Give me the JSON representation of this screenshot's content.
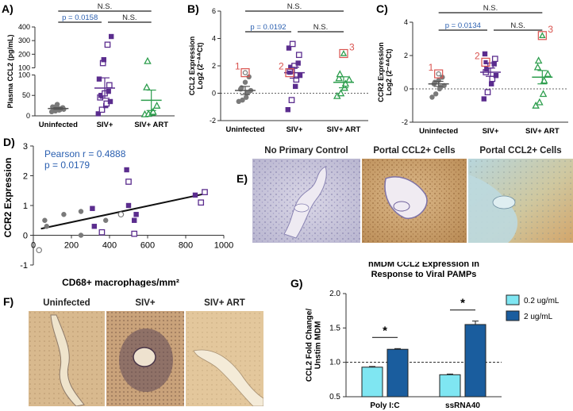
{
  "figure": {
    "panel_letters": {
      "A": "A)",
      "B": "B)",
      "C": "C)",
      "D": "D)",
      "E": "E)",
      "F": "F)",
      "G": "G)"
    },
    "colors": {
      "uninfected": "#7a7a7a",
      "siv": "#5b2d8e",
      "art": "#2e9e4e",
      "pvalue": "#2a5fb0",
      "outlier": "#d9534f",
      "g_low": "#7fe6f2",
      "g_high": "#1a5d9e"
    }
  },
  "chart_data": [
    {
      "id": "A",
      "type": "scatter",
      "ylabel": "Plasma CCL2 (pg/mL)",
      "categories": [
        "Uninfected",
        "SIV+",
        "SIV+ ART"
      ],
      "axis_break": true,
      "ylim_upper": [
        100,
        400
      ],
      "yticks_upper": [
        "400",
        "300",
        "200",
        "100"
      ],
      "ylim_lower": [
        0,
        100
      ],
      "yticks_lower": [
        "100",
        "50",
        "0"
      ],
      "groups": [
        {
          "name": "Uninfected",
          "marker": "filled-circle",
          "values": [
            10,
            12,
            14,
            15,
            16,
            17,
            18,
            18,
            19,
            20,
            22,
            24,
            28
          ],
          "mean": 18,
          "sem": 2
        },
        {
          "name": "SIV+",
          "marker": "mixed-square",
          "values": [
            5,
            15,
            25,
            30,
            35,
            45,
            50,
            55,
            60,
            75,
            90,
            135,
            160,
            270,
            330
          ],
          "mean": 68,
          "sem": 25
        },
        {
          "name": "SIV+ ART",
          "marker": "open-triangle",
          "values": [
            4,
            5,
            8,
            10,
            25,
            70,
            150
          ],
          "mean": 38,
          "sem": 25
        }
      ],
      "brackets": [
        {
          "from": "Uninfected",
          "to": "SIV+",
          "text": "p = 0.0158",
          "level": 2
        },
        {
          "from": "SIV+",
          "to": "SIV+ ART",
          "text": "N.S.",
          "level": 2
        },
        {
          "from": "Uninfected",
          "to": "SIV+ ART",
          "text": "N.S.",
          "level": 1
        }
      ]
    },
    {
      "id": "B",
      "type": "scatter",
      "ylabel": "CCL2 Expression\nLog2 (2⁻ᐞᐞCt)",
      "categories": [
        "Uninfected",
        "SIV+",
        "SIV+ ART"
      ],
      "ylim": [
        -2,
        6
      ],
      "yticks": [
        "-2",
        "0",
        "2",
        "4",
        "6"
      ],
      "groups": [
        {
          "name": "Uninfected",
          "values": [
            -0.6,
            -0.5,
            -0.3,
            0.0,
            0.2,
            0.3,
            0.4,
            0.8,
            1.2
          ],
          "mean": 0.2,
          "sem": 0.3,
          "outlier": {
            "value": 1.5,
            "label": "1"
          }
        },
        {
          "name": "SIV+",
          "values": [
            -1.2,
            -0.5,
            0.5,
            1.0,
            1.3,
            1.6,
            1.9,
            2.0,
            2.2,
            2.8,
            3.3,
            3.6
          ],
          "mean": 1.5,
          "sem": 0.4,
          "outlier": {
            "value": 1.5,
            "label": "2"
          }
        },
        {
          "name": "SIV+ ART",
          "values": [
            -0.2,
            0.0,
            0.4,
            0.7,
            1.0,
            1.1,
            1.4
          ],
          "mean": 0.8,
          "sem": 0.4,
          "outlier": {
            "value": 2.9,
            "label": "3"
          }
        }
      ],
      "brackets": [
        {
          "from": "Uninfected",
          "to": "SIV+",
          "text": "p = 0.0192",
          "level": 2
        },
        {
          "from": "SIV+",
          "to": "SIV+ ART",
          "text": "N.S.",
          "level": 2
        },
        {
          "from": "Uninfected",
          "to": "SIV+ ART",
          "text": "N.S.",
          "level": 1
        }
      ]
    },
    {
      "id": "C",
      "type": "scatter",
      "ylabel": "CCR2 Expression\nLog2 (2⁻ᐞᐞCt)",
      "categories": [
        "Uninfected",
        "SIV+",
        "SIV+ ART"
      ],
      "ylim": [
        -2,
        4
      ],
      "yticks": [
        "-2",
        "0",
        "2",
        "4"
      ],
      "groups": [
        {
          "name": "Uninfected",
          "values": [
            -0.5,
            -0.3,
            0.0,
            0.1,
            0.2,
            0.3,
            0.4,
            0.5,
            0.7
          ],
          "mean": 0.3,
          "sem": 0.15,
          "outlier": {
            "value": 0.9,
            "label": "1"
          }
        },
        {
          "name": "SIV+",
          "values": [
            -0.6,
            -0.2,
            0.3,
            0.6,
            0.8,
            1.0,
            1.2,
            1.4,
            1.5,
            1.8,
            2.1
          ],
          "mean": 1.0,
          "sem": 0.25,
          "outlier": {
            "value": 1.6,
            "label": "2"
          }
        },
        {
          "name": "SIV+ ART",
          "values": [
            -1.0,
            -0.8,
            -0.3,
            0.5,
            0.9,
            1.3,
            1.7
          ],
          "mean": 0.7,
          "sem": 0.4,
          "outlier": {
            "value": 3.2,
            "label": "3"
          }
        }
      ],
      "brackets": [
        {
          "from": "Uninfected",
          "to": "SIV+",
          "text": "p = 0.0134",
          "level": 2
        },
        {
          "from": "SIV+",
          "to": "SIV+ ART",
          "text": "N.S.",
          "level": 2
        },
        {
          "from": "Uninfected",
          "to": "SIV+ ART",
          "text": "N.S.",
          "level": 1
        }
      ]
    },
    {
      "id": "D",
      "type": "scatter",
      "xlabel": "CD68+ macrophages/mm²",
      "ylabel": "CCR2 Expression",
      "xlim": [
        0,
        1000
      ],
      "ylim": [
        -1,
        3
      ],
      "xticks": [
        "0",
        "200",
        "400",
        "600",
        "800",
        "1000"
      ],
      "yticks": [
        "-1",
        "0",
        "1",
        "2",
        "3"
      ],
      "annotation": [
        "Pearson r = 0.4888",
        "p = 0.0179"
      ],
      "fit_line": [
        [
          40,
          0.22
        ],
        [
          890,
          1.38
        ]
      ],
      "points": [
        {
          "x": 60,
          "y": 0.5,
          "kind": "gray"
        },
        {
          "x": 70,
          "y": 0.3,
          "kind": "gray"
        },
        {
          "x": 160,
          "y": 0.7,
          "kind": "gray"
        },
        {
          "x": 250,
          "y": 0.8,
          "kind": "gray"
        },
        {
          "x": 250,
          "y": 0.0,
          "kind": "gray"
        },
        {
          "x": 380,
          "y": 0.5,
          "kind": "gray"
        },
        {
          "x": 30,
          "y": -0.5,
          "kind": "gray-open"
        },
        {
          "x": 460,
          "y": 0.7,
          "kind": "gray-open"
        },
        {
          "x": 310,
          "y": 0.9,
          "kind": "siv"
        },
        {
          "x": 320,
          "y": 0.3,
          "kind": "siv"
        },
        {
          "x": 490,
          "y": 2.2,
          "kind": "siv"
        },
        {
          "x": 500,
          "y": 1.0,
          "kind": "siv"
        },
        {
          "x": 530,
          "y": 0.5,
          "kind": "siv"
        },
        {
          "x": 540,
          "y": 0.7,
          "kind": "siv"
        },
        {
          "x": 850,
          "y": 1.35,
          "kind": "siv"
        },
        {
          "x": 360,
          "y": 0.1,
          "kind": "siv-open"
        },
        {
          "x": 500,
          "y": 1.8,
          "kind": "siv-open"
        },
        {
          "x": 530,
          "y": 0.05,
          "kind": "siv-open"
        },
        {
          "x": 880,
          "y": 1.1,
          "kind": "siv-open"
        },
        {
          "x": 900,
          "y": 1.45,
          "kind": "siv-open"
        }
      ]
    },
    {
      "id": "G",
      "type": "bar",
      "title": "hMDM CCL2 Expression in\nResponse to Viral PAMPs",
      "ylabel": "CCL2 Fold Change/\nUnstim MDM",
      "categories": [
        "Poly I:C",
        "ssRNA40"
      ],
      "ylim": [
        0.5,
        2.0
      ],
      "yticks": [
        "0.5",
        "1.0",
        "1.5",
        "2.0"
      ],
      "reference_line": 1.0,
      "legend_position": "right",
      "series": [
        {
          "name": "0.2 ug/mL",
          "values": [
            0.93,
            0.82
          ],
          "err": [
            0.01,
            0.01
          ]
        },
        {
          "name": "2 ug/mL",
          "values": [
            1.19,
            1.55
          ],
          "err": [
            0.01,
            0.05
          ]
        }
      ],
      "significance": [
        "*",
        "*"
      ]
    }
  ],
  "panels": {
    "E": {
      "titles": [
        "No Primary Control",
        "Portal CCL2+ Cells",
        "Portal CCL2+ Cells"
      ]
    },
    "F": {
      "titles": [
        "Uninfected",
        "SIV+",
        "SIV+ ART"
      ]
    }
  }
}
